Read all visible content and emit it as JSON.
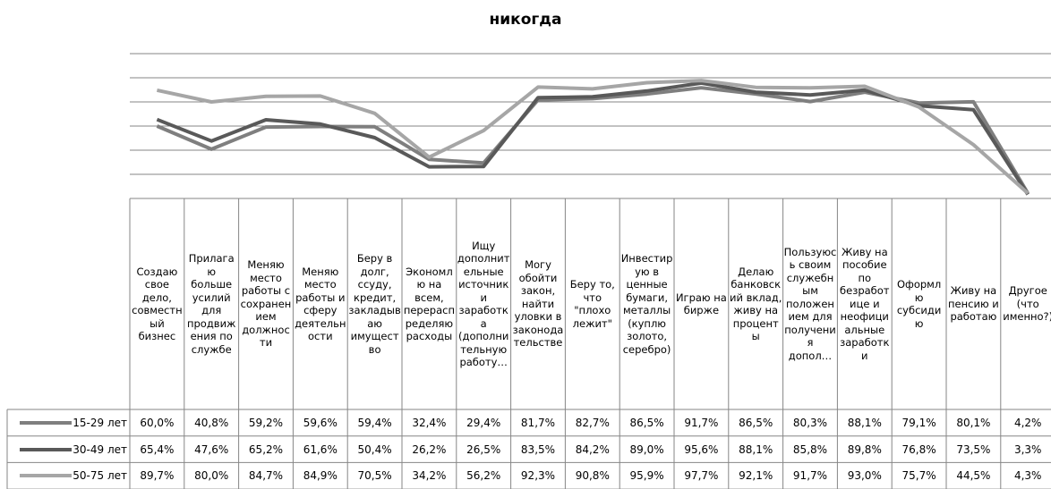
{
  "chart_data": {
    "type": "line",
    "title": "никогда",
    "categories": [
      "Создаю свое дело, совместный бизнес",
      "Прилагаю больше усилий для продвижения по службе",
      "Меняю место работы с сохранением должности",
      "Меняю место работы и сферу деятельности",
      "Беру в долг, ссуду, кредит, закладываю имущество",
      "Экономлю на всем, перераспределяю расходы",
      "Ищу дополнительные источники заработка (дополнительную работу…",
      "Могу обойти закон, найти уловки в законодательстве",
      "Беру то, что \"плохо лежит\"",
      "Инвестирую в ценные бумаги, металлы (куплю золото, серебро)",
      "Играю на бирже",
      "Делаю банковский вклад, живу на проценты",
      "Пользуюсь своим служебным положением для получения допол…",
      "Живу на пособие по безработице и неофициальные заработки",
      "Оформлю субсидию",
      "Живу на пенсию и работаю",
      "Другое (что именно?)"
    ],
    "series": [
      {
        "name": "15-29 лет",
        "color": "#7f7f7f",
        "values": [
          60.0,
          40.8,
          59.2,
          59.6,
          59.4,
          32.4,
          29.4,
          81.7,
          82.7,
          86.5,
          91.7,
          86.5,
          80.3,
          88.1,
          79.1,
          80.1,
          4.2
        ],
        "value_labels": [
          "60,0%",
          "40,8%",
          "59,2%",
          "59,6%",
          "59,4%",
          "32,4%",
          "29,4%",
          "81,7%",
          "82,7%",
          "86,5%",
          "91,7%",
          "86,5%",
          "80,3%",
          "88,1%",
          "79,1%",
          "80,1%",
          "4,2%"
        ]
      },
      {
        "name": "30-49 лет",
        "color": "#595959",
        "values": [
          65.4,
          47.6,
          65.2,
          61.6,
          50.4,
          26.2,
          26.5,
          83.5,
          84.2,
          89.0,
          95.6,
          88.1,
          85.8,
          89.8,
          76.8,
          73.5,
          3.3
        ],
        "value_labels": [
          "65,4%",
          "47,6%",
          "65,2%",
          "61,6%",
          "50,4%",
          "26,2%",
          "26,5%",
          "83,5%",
          "84,2%",
          "89,0%",
          "95,6%",
          "88,1%",
          "85,8%",
          "89,8%",
          "76,8%",
          "73,5%",
          "3,3%"
        ]
      },
      {
        "name": "50-75 лет",
        "color": "#a6a6a6",
        "values": [
          89.7,
          80.0,
          84.7,
          84.9,
          70.5,
          34.2,
          56.2,
          92.3,
          90.8,
          95.9,
          97.7,
          92.1,
          91.7,
          93.0,
          75.7,
          44.5,
          4.3
        ],
        "value_labels": [
          "89,7%",
          "80,0%",
          "84,7%",
          "84,9%",
          "70,5%",
          "34,2%",
          "56,2%",
          "92,3%",
          "90,8%",
          "95,9%",
          "97,7%",
          "92,1%",
          "91,7%",
          "93,0%",
          "75,7%",
          "44,5%",
          "4,3%"
        ]
      }
    ],
    "ylim": [
      0,
      120
    ],
    "yticks": [
      0,
      20,
      40,
      60,
      80,
      100,
      120
    ],
    "grid": true,
    "legend": "table"
  }
}
